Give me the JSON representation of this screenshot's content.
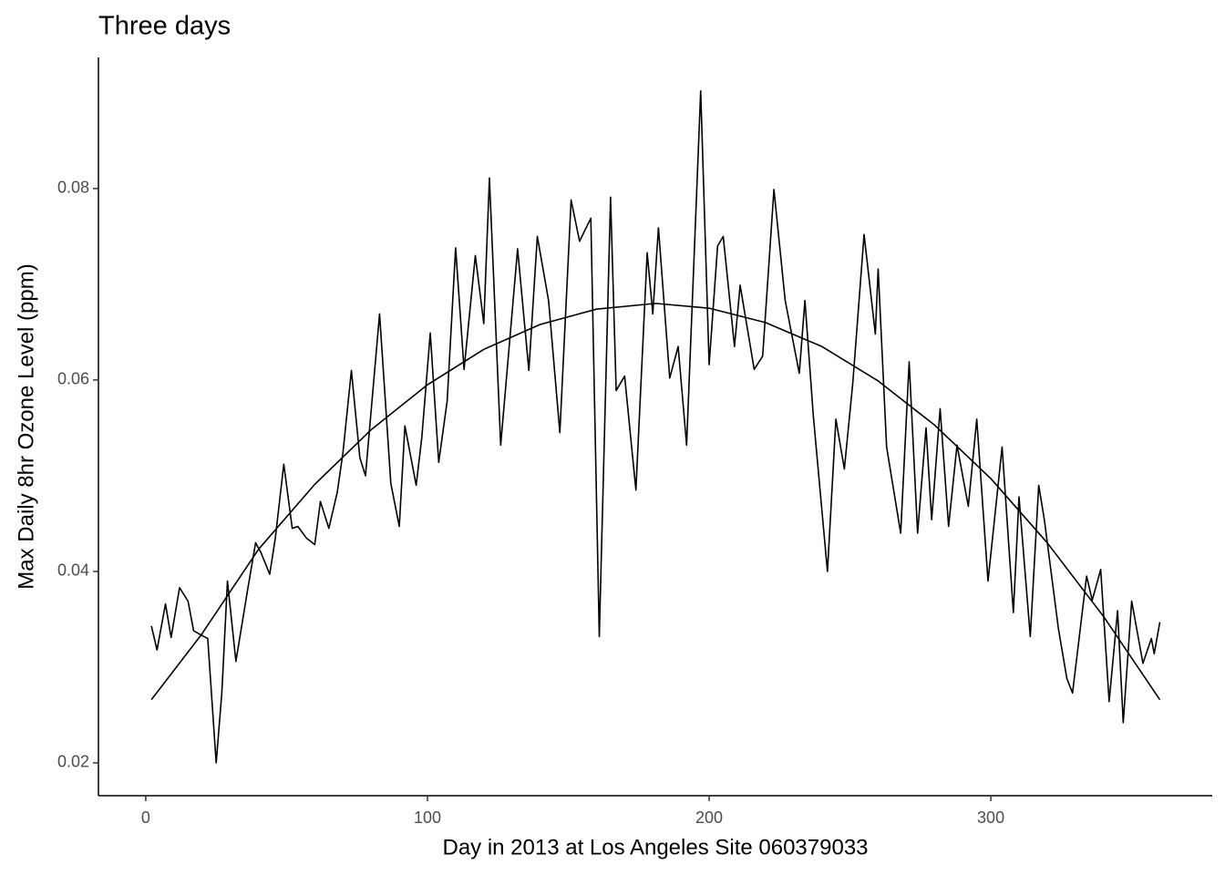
{
  "chart_data": {
    "type": "line",
    "title": "Three days",
    "x_label": "Day in 2013 at Los Angeles Site 060379033",
    "y_label": "Max Daily 8hr Ozone Level (ppm)",
    "xlim": [
      -16.8,
      378.6
    ],
    "ylim": [
      0.01657,
      0.0937
    ],
    "xticks": [
      0,
      100,
      200,
      300
    ],
    "yticks": [
      0.02,
      0.04,
      0.06,
      0.08
    ],
    "grid": false,
    "series": [
      {
        "color": "#000000",
        "x": [
          2,
          4,
          7,
          9,
          12,
          15,
          17,
          20,
          22,
          25,
          27,
          29,
          32,
          36,
          39,
          41,
          44,
          46,
          49,
          52,
          54,
          57,
          60,
          62,
          65,
          68,
          70,
          73,
          76,
          78,
          83,
          87,
          90,
          92,
          96,
          98,
          101,
          104,
          107,
          110,
          113,
          117,
          120,
          122,
          126,
          132,
          136,
          139,
          143,
          147,
          151,
          154,
          158,
          161,
          165,
          167,
          170,
          174,
          178,
          180,
          182,
          186,
          189,
          192,
          197,
          200,
          203,
          205,
          209,
          211,
          216,
          219,
          223,
          227,
          232,
          234,
          237,
          242,
          245,
          248,
          251,
          255,
          259,
          260,
          263,
          268,
          271,
          274,
          277,
          279,
          282,
          285,
          288,
          292,
          295,
          299,
          304,
          308,
          310,
          314,
          317,
          319,
          324,
          327,
          329,
          334,
          336,
          339,
          342,
          345,
          347,
          350,
          354,
          357,
          358,
          360
        ],
        "values": [
          0.0343,
          0.0318,
          0.0366,
          0.0331,
          0.0383,
          0.0369,
          0.0338,
          0.0333,
          0.033,
          0.02,
          0.0273,
          0.039,
          0.0306,
          0.0378,
          0.043,
          0.0419,
          0.0397,
          0.0435,
          0.0512,
          0.0445,
          0.0447,
          0.0435,
          0.0428,
          0.0473,
          0.0445,
          0.0483,
          0.0524,
          0.061,
          0.0519,
          0.05,
          0.0669,
          0.0492,
          0.0447,
          0.0552,
          0.049,
          0.054,
          0.0649,
          0.0514,
          0.0578,
          0.0738,
          0.0611,
          0.073,
          0.0659,
          0.0811,
          0.0532,
          0.0737,
          0.061,
          0.075,
          0.0683,
          0.0545,
          0.0788,
          0.0745,
          0.0769,
          0.0332,
          0.0791,
          0.0589,
          0.0604,
          0.0485,
          0.0733,
          0.0669,
          0.0759,
          0.0602,
          0.0635,
          0.0532,
          0.0902,
          0.0616,
          0.074,
          0.075,
          0.0635,
          0.0699,
          0.0611,
          0.0625,
          0.0799,
          0.0683,
          0.0607,
          0.0683,
          0.0562,
          0.04,
          0.0559,
          0.0507,
          0.0597,
          0.0752,
          0.0648,
          0.0716,
          0.053,
          0.044,
          0.0619,
          0.044,
          0.055,
          0.0454,
          0.057,
          0.0447,
          0.0532,
          0.0468,
          0.0559,
          0.039,
          0.053,
          0.0357,
          0.0478,
          0.0332,
          0.049,
          0.0454,
          0.034,
          0.0288,
          0.0273,
          0.0395,
          0.037,
          0.0402,
          0.0264,
          0.0359,
          0.0242,
          0.0369,
          0.0304,
          0.033,
          0.0314,
          0.0347
        ]
      },
      {
        "color": "#000000",
        "x": [
          2,
          20,
          40,
          60,
          80,
          100,
          120,
          140,
          160,
          181,
          200,
          220,
          240,
          260,
          280,
          300,
          320,
          340,
          360
        ],
        "values": [
          0.0266,
          0.0335,
          0.0423,
          0.0491,
          0.0548,
          0.0595,
          0.0632,
          0.0658,
          0.0674,
          0.068,
          0.0675,
          0.066,
          0.0635,
          0.0599,
          0.0553,
          0.0497,
          0.043,
          0.0353,
          0.0266
        ]
      }
    ]
  }
}
